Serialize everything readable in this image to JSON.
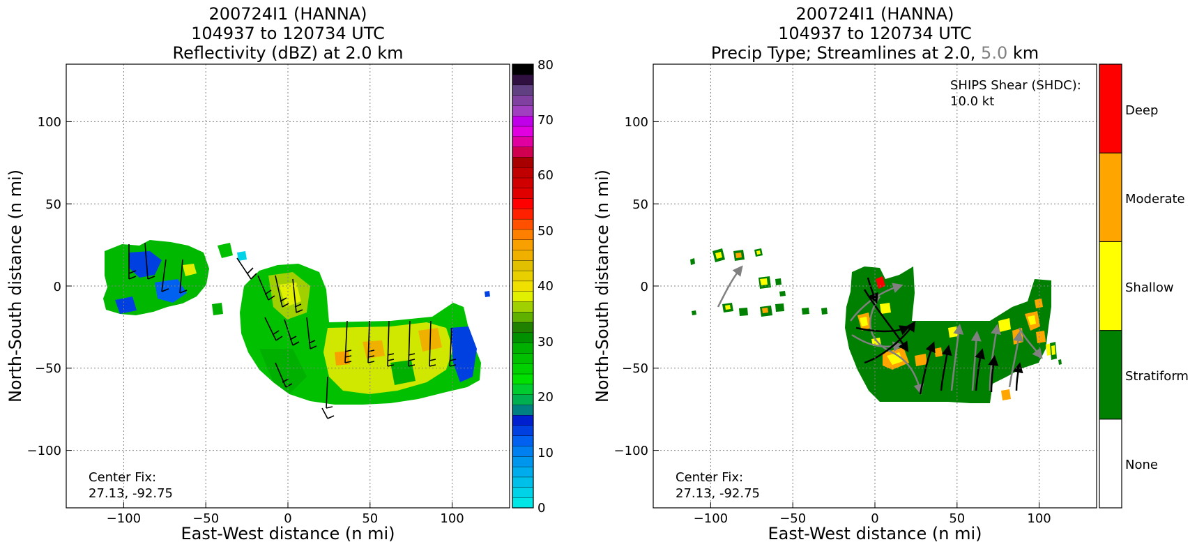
{
  "panels": [
    {
      "title_line1": "200724I1 (HANNA)",
      "title_line2": "104937 to 120734 UTC",
      "title_line3": "Reflectivity (dBZ) at 2.0 km",
      "xlabel": "East-West distance (n mi)",
      "ylabel": "North-South distance (n mi)",
      "center_fix_label": "Center Fix:",
      "center_fix_value": "27.13, -92.75"
    },
    {
      "title_line1": "200724I1 (HANNA)",
      "title_line2": "104937 to 120734 UTC",
      "title_line3_a": "Precip Type; Streamlines at 2.0,",
      "title_line3_b": "5.0",
      "title_line3_c": "km",
      "xlabel": "East-West distance (n mi)",
      "ylabel": "North-South distance (n mi)",
      "center_fix_label": "Center Fix:",
      "center_fix_value": "27.13, -92.75",
      "shear_label": "SHIPS Shear (SHDC):",
      "shear_value": "10.0 kt"
    }
  ],
  "colorbar_reflectivity": {
    "ticks": [
      "0",
      "10",
      "20",
      "30",
      "40",
      "50",
      "60",
      "70",
      "80"
    ],
    "colors": [
      "#00e5e5",
      "#00d2e8",
      "#00bfe8",
      "#00acec",
      "#0096ee",
      "#0080f0",
      "#0060f0",
      "#0040e0",
      "#0020d0",
      "#008080",
      "#00b050",
      "#00cc30",
      "#00e000",
      "#00d000",
      "#00c000",
      "#00b000",
      "#009000",
      "#208000",
      "#60b000",
      "#a0d000",
      "#e0f000",
      "#f0e000",
      "#e8d000",
      "#e0c000",
      "#f0b000",
      "#f8a000",
      "#ff8000",
      "#ff5000",
      "#ff2000",
      "#ff0000",
      "#e00000",
      "#d00000",
      "#c00000",
      "#a80000",
      "#d00050",
      "#e000a0",
      "#e000e0",
      "#c000e8",
      "#a040c0",
      "#8040a0",
      "#604080",
      "#301040",
      "#000000"
    ]
  },
  "colorbar_precip": {
    "labels": [
      "None",
      "Stratiform",
      "Shallow",
      "Moderate",
      "Deep"
    ],
    "colors": [
      "#ffffff",
      "#008000",
      "#ffff00",
      "#ffa500",
      "#ff0000"
    ]
  },
  "chart_data": [
    {
      "type": "heatmap",
      "title": "200724I1 (HANNA) 104937 to 120734 UTC Reflectivity (dBZ) at 2.0 km",
      "xlabel": "East-West distance (n mi)",
      "ylabel": "North-South distance (n mi)",
      "xlim": [
        -135,
        135
      ],
      "ylim": [
        -135,
        135
      ],
      "xticks": [
        -100,
        -50,
        0,
        50,
        100
      ],
      "yticks": [
        -100,
        -50,
        0,
        50,
        100
      ],
      "grid": true,
      "colorbar_range": [
        0,
        80
      ],
      "colorbar_ticks": [
        0,
        10,
        20,
        30,
        40,
        50,
        60,
        70,
        80
      ],
      "annotations": [
        "Center Fix:",
        "27.13, -92.75"
      ]
    },
    {
      "type": "heatmap",
      "title": "200724I1 (HANNA) 104937 to 120734 UTC Precip Type; Streamlines at 2.0, 5.0 km",
      "xlabel": "East-West distance (n mi)",
      "ylabel": "North-South distance (n mi)",
      "xlim": [
        -135,
        135
      ],
      "ylim": [
        -135,
        135
      ],
      "xticks": [
        -100,
        -50,
        0,
        50,
        100
      ],
      "yticks": [
        -100,
        -50,
        0,
        50,
        100
      ],
      "grid": true,
      "categories": [
        "None",
        "Stratiform",
        "Shallow",
        "Moderate",
        "Deep"
      ],
      "annotations": [
        "Center Fix:",
        "27.13, -92.75",
        "SHIPS Shear (SHDC):",
        "10.0 kt"
      ]
    }
  ]
}
